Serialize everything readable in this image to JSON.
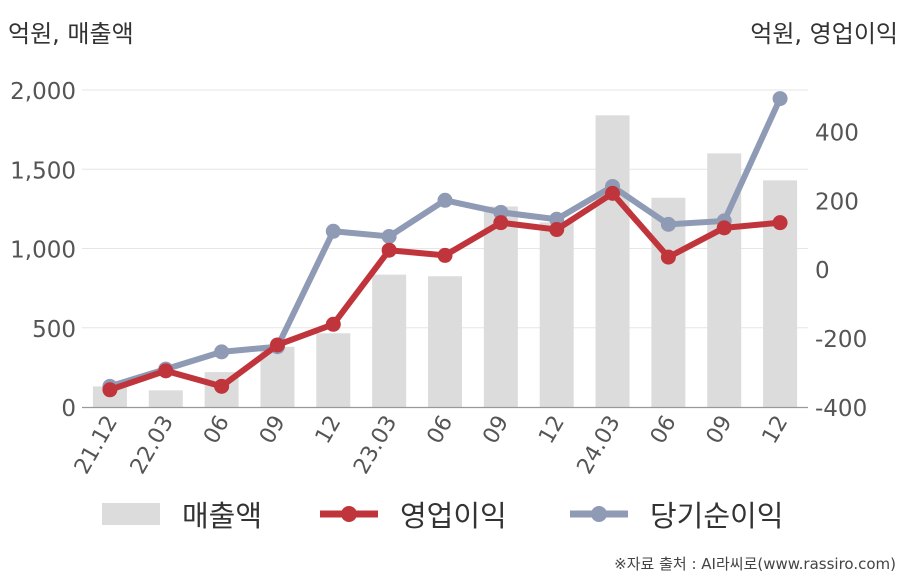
{
  "header": {
    "left_unit": "억원, 매출액",
    "right_unit": "억원, 영업이익"
  },
  "legend": {
    "items": [
      {
        "label": "매출액",
        "type": "bar",
        "color": "#dcdcdc"
      },
      {
        "label": "영업이익",
        "type": "line",
        "color": "#c0353b"
      },
      {
        "label": "당기순이익",
        "type": "line",
        "color": "#8f9ab5"
      }
    ]
  },
  "source": "※자료 출처 : AI라씨로(www.rassiro.com)",
  "chart_data": {
    "type": "bar",
    "categories": [
      "21.12",
      "22.03",
      "06",
      "09",
      "12",
      "23.03",
      "06",
      "09",
      "12",
      "24.03",
      "06",
      "09",
      "12"
    ],
    "y_left": {
      "ticks": [
        "0",
        "500",
        "1,000",
        "1,500",
        "2,000"
      ],
      "ylim": [
        0,
        2000
      ]
    },
    "y_right": {
      "ticks": [
        "-400",
        "-200",
        "0",
        "200",
        "400"
      ],
      "ylim": [
        -400,
        520
      ]
    },
    "grid": true,
    "legend_position": "bottom",
    "series": [
      {
        "name": "매출액",
        "type": "bar",
        "axis": "left",
        "color": "#dcdcdc",
        "values": [
          130,
          105,
          220,
          380,
          465,
          835,
          825,
          1265,
          1165,
          1840,
          1320,
          1600,
          1430
        ]
      },
      {
        "name": "영업이익",
        "type": "line",
        "axis": "right",
        "color": "#c0353b",
        "values": [
          -350,
          -295,
          -340,
          -220,
          -160,
          55,
          40,
          135,
          115,
          220,
          35,
          120,
          135
        ]
      },
      {
        "name": "당기순이익",
        "type": "line",
        "axis": "right",
        "color": "#8f9ab5",
        "values": [
          -340,
          -290,
          -240,
          -225,
          110,
          95,
          200,
          165,
          145,
          240,
          130,
          140,
          495
        ]
      }
    ]
  }
}
